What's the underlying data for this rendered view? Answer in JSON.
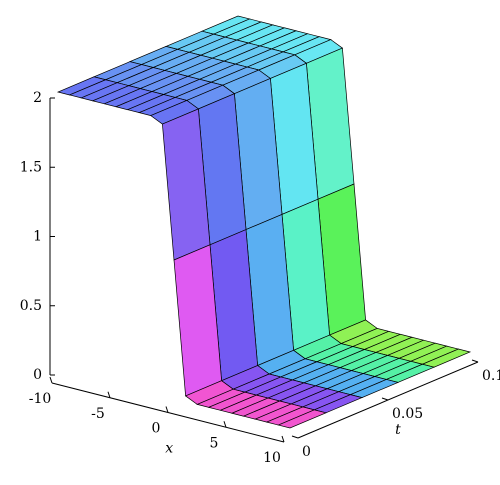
{
  "chart_data": {
    "type": "surface",
    "xlabel": "x",
    "tlabel": "t",
    "x": [
      -10,
      -9,
      -8,
      -7,
      -6,
      -5,
      -4,
      -3,
      -2,
      -1,
      0,
      1,
      2,
      3,
      4,
      5,
      6,
      7,
      8,
      9,
      10
    ],
    "t": [
      0,
      0.02,
      0.04,
      0.06,
      0.08,
      0.1
    ],
    "z": [
      [
        2,
        2,
        2,
        2,
        2,
        2,
        2,
        2,
        2,
        1.96,
        1.0,
        0.04,
        0,
        0,
        0,
        0,
        0,
        0,
        0,
        0,
        0
      ],
      [
        2,
        2,
        2,
        2,
        2,
        2,
        2,
        2,
        2,
        1.96,
        1.0,
        0.04,
        0,
        0,
        0,
        0,
        0,
        0,
        0,
        0,
        0
      ],
      [
        2,
        2,
        2,
        2,
        2,
        2,
        2,
        2,
        2,
        1.96,
        1.0,
        0.04,
        0,
        0,
        0,
        0,
        0,
        0,
        0,
        0,
        0
      ],
      [
        2,
        2,
        2,
        2,
        2,
        2,
        2,
        2,
        2,
        1.96,
        1.0,
        0.04,
        0,
        0,
        0,
        0,
        0,
        0,
        0,
        0,
        0
      ],
      [
        2,
        2,
        2,
        2,
        2,
        2,
        2,
        2,
        2,
        1.96,
        1.0,
        0.04,
        0,
        0,
        0,
        0,
        0,
        0,
        0,
        0,
        0
      ],
      [
        2,
        2,
        2,
        2,
        2,
        2,
        2,
        2,
        2,
        1.96,
        1.0,
        0.04,
        0,
        0,
        0,
        0,
        0,
        0,
        0,
        0,
        0
      ]
    ],
    "xlim": [
      -10,
      10
    ],
    "tlim": [
      0,
      0.1
    ],
    "zlim": [
      0,
      2
    ],
    "xticks": [
      -10,
      -5,
      0,
      5,
      10
    ],
    "tticks": [
      0,
      0.05,
      0.1
    ],
    "zticks": [
      0,
      0.5,
      1,
      1.5,
      2
    ]
  }
}
